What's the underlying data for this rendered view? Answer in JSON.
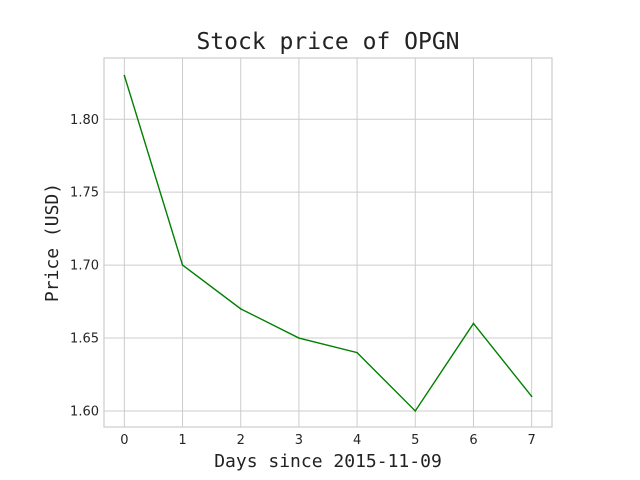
{
  "chart_data": {
    "type": "line",
    "title": "Stock price of OPGN",
    "xlabel": "Days since 2015-11-09",
    "ylabel": "Price (USD)",
    "x": [
      0,
      1,
      2,
      3,
      4,
      5,
      6,
      7
    ],
    "series": [
      {
        "values": [
          1.83,
          1.7,
          1.67,
          1.65,
          1.64,
          1.6,
          1.66,
          1.61
        ],
        "color": "#008000"
      }
    ],
    "xlim": [
      -0.35,
      7.35
    ],
    "ylim": [
      1.589,
      1.842
    ],
    "xticks": [
      "0",
      "1",
      "2",
      "3",
      "4",
      "5",
      "6",
      "7"
    ],
    "yticks": [
      "1.60",
      "1.65",
      "1.70",
      "1.75",
      "1.80"
    ],
    "grid": true,
    "colors": {
      "grid": "#cccccc",
      "text": "#222222"
    }
  }
}
